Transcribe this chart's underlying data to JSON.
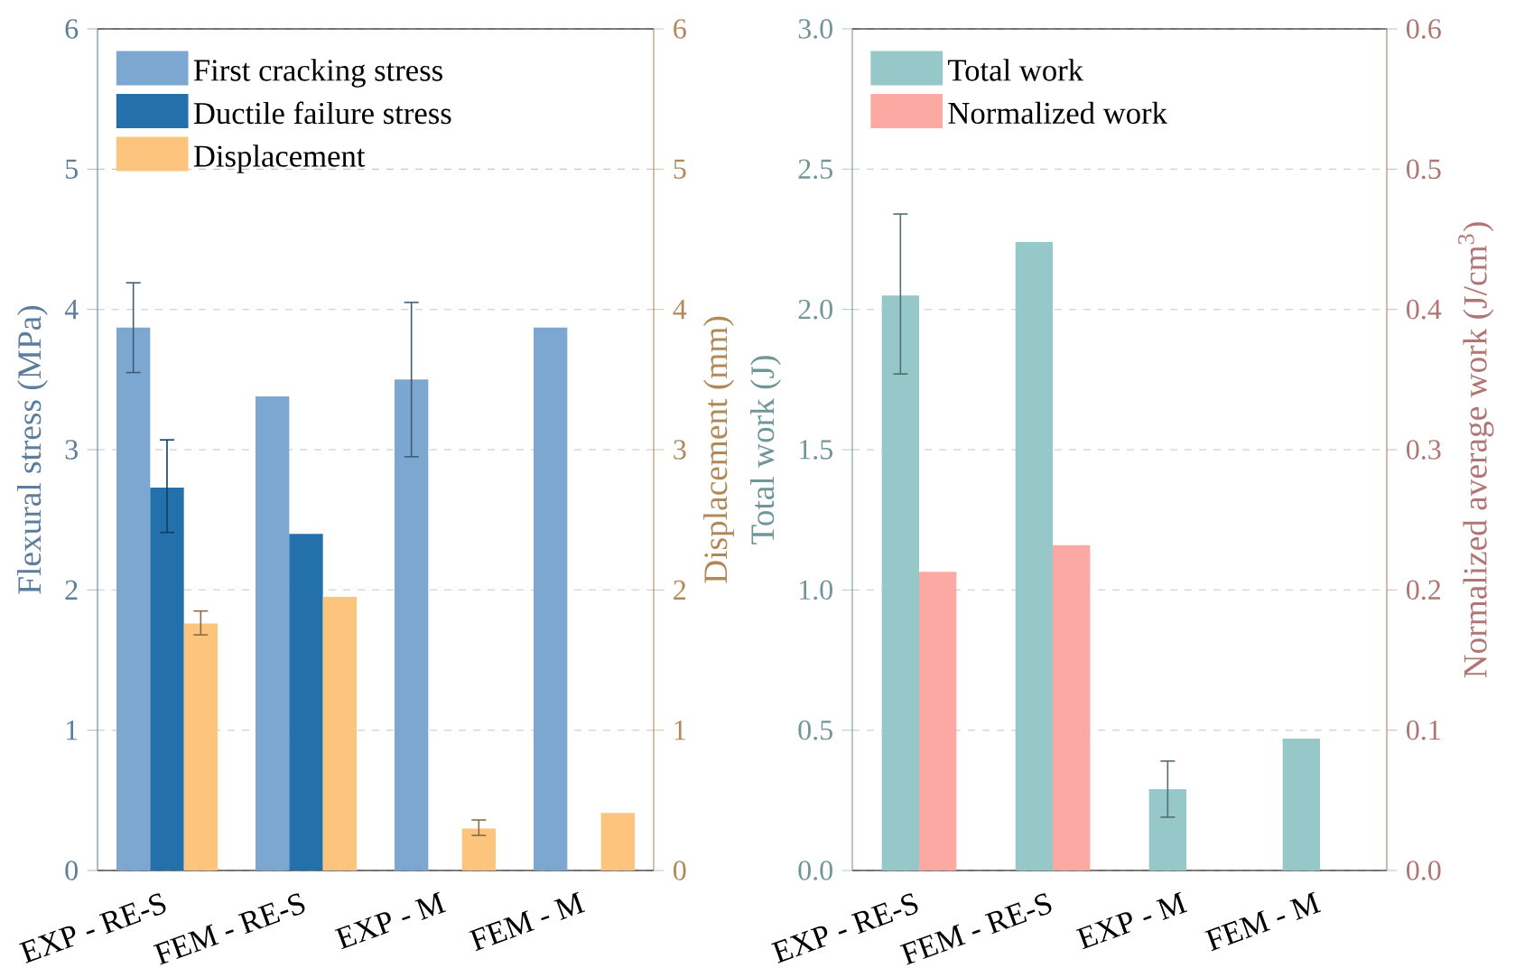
{
  "chart_data": [
    {
      "type": "bar",
      "categories": [
        "EXP - RE-S",
        "FEM - RE-S",
        "EXP - M",
        "FEM - M"
      ],
      "ylabel": "Flexural stress (MPa)",
      "y2label": "Displacement (mm)",
      "ylim": [
        0,
        6
      ],
      "yticks": [
        0,
        1,
        2,
        3,
        4,
        5,
        6
      ],
      "y2lim": [
        0,
        6
      ],
      "y2ticks": [
        0,
        1,
        2,
        3,
        4,
        5,
        6
      ],
      "grid": "y",
      "legend": "top left",
      "series": [
        {
          "name": "First cracking stress",
          "color": "#7ba7d1",
          "values": [
            3.87,
            3.38,
            3.5,
            3.87
          ],
          "errors": [
            [
              3.55,
              4.19
            ],
            null,
            [
              2.95,
              4.05
            ],
            null
          ]
        },
        {
          "name": "Ductile failure stress",
          "color": "#2470ab",
          "values": [
            2.73,
            2.4,
            null,
            null
          ],
          "errors": [
            [
              2.41,
              3.07
            ],
            null,
            null,
            null
          ]
        },
        {
          "name": "Displacement",
          "color": "#fdc47e",
          "axis": "y2",
          "values": [
            1.76,
            1.95,
            0.3,
            0.41
          ],
          "errors": [
            [
              1.68,
              1.85
            ],
            null,
            [
              0.25,
              0.36
            ],
            null
          ]
        }
      ]
    },
    {
      "type": "bar",
      "categories": [
        "EXP - RE-S",
        "FEM - RE-S",
        "EXP - M",
        "FEM - M"
      ],
      "ylabel": "Total work (J)",
      "y2label": "Normalized average work (J/cm$^{3}$)",
      "ylim": [
        0,
        3
      ],
      "yticks": [
        {
          "value": 0,
          "label": "0.0"
        },
        {
          "value": 0.5,
          "label": "0.5"
        },
        {
          "value": 1,
          "label": "1.0"
        },
        {
          "value": 1.5,
          "label": "1.5"
        },
        {
          "value": 2,
          "label": "2.0"
        },
        {
          "value": 2.5,
          "label": "2.5"
        },
        {
          "value": 3,
          "label": "3.0"
        }
      ],
      "y2lim": [
        0,
        0.6
      ],
      "y2ticks": [
        {
          "value": 0,
          "label": "0.0"
        },
        0.1,
        0.2,
        0.3,
        0.4,
        0.5,
        0.6
      ],
      "grid": "y",
      "legend": "top left",
      "series": [
        {
          "name": "Total work",
          "color": "#96c8c9",
          "values": [
            2.05,
            2.24,
            0.29,
            0.47
          ],
          "errors": [
            [
              1.77,
              2.34
            ],
            null,
            [
              0.19,
              0.39
            ],
            null
          ]
        },
        {
          "name": "Normalized work",
          "color": "#fca9a4",
          "axis": "y2",
          "values": [
            0.213,
            0.232,
            null,
            null
          ]
        }
      ]
    }
  ]
}
